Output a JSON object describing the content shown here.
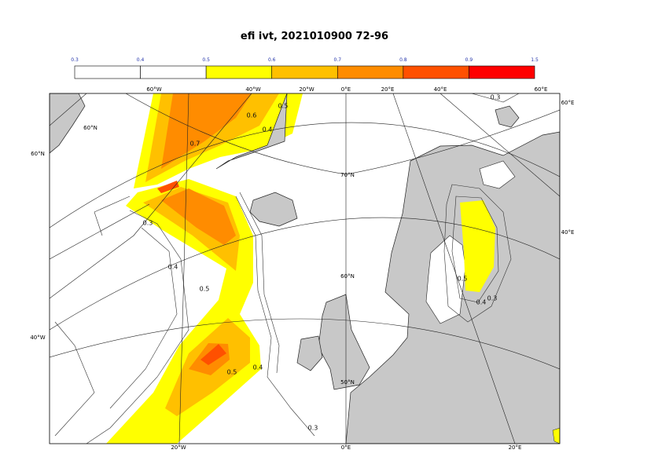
{
  "title": "efi ivt, 2021010900 72-96",
  "colorbar": {
    "ticks": [
      0.3,
      0.4,
      0.5,
      0.6,
      0.7,
      0.8,
      0.9,
      1.5
    ],
    "colors": [
      "#ffffff",
      "#ffffff",
      "#ffff00",
      "#ffc000",
      "#ff8c00",
      "#ff5000",
      "#ff0000"
    ]
  },
  "lon_labels_top": [
    "60°W",
    "40°W",
    "20°W",
    "0°E",
    "20°E",
    "40°E",
    "60°E"
  ],
  "lon_labels_bottom": [
    "20°W",
    "0°E",
    "20°E"
  ],
  "side_labels": [
    "60°N",
    "40°W",
    "60°E",
    "40°E"
  ],
  "inner_labels": [
    "60°N",
    "70°N",
    "60°N",
    "50°N"
  ],
  "contour_labels": [
    "0.7",
    "0.6",
    "0.5",
    "0.4",
    "0.3",
    "0.4",
    "0.5",
    "0.5",
    "0.4",
    "0.3",
    "0.5",
    "0.4",
    "0.3",
    "0.3"
  ]
}
